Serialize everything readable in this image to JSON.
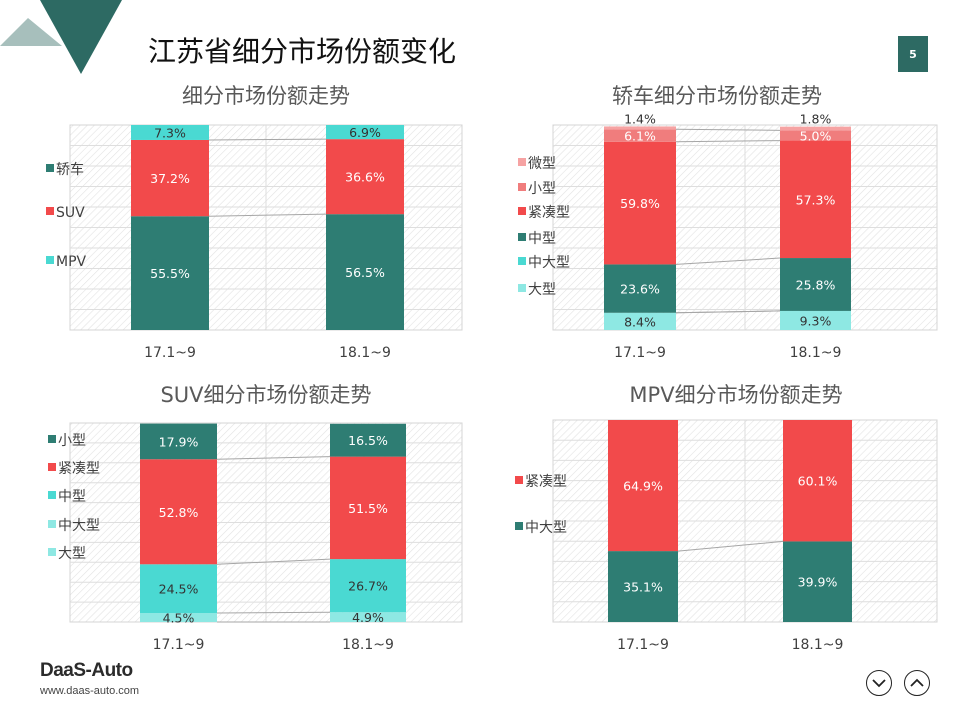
{
  "header": {
    "title": "江苏省细分市场份额变化",
    "page_number": "5"
  },
  "footer": {
    "logo_text": "DaaS-Auto",
    "url": "www.daas-auto.com"
  },
  "nav": {
    "down_icon": "chevron-down-circle-icon",
    "up_icon": "chevron-up-circle-icon"
  },
  "colors": {
    "teal": "#2e7d73",
    "red": "#f24a4b",
    "cyan": "#4ad9d2",
    "light_cyan": "#8ee8e3",
    "pink": "#f07d7d",
    "light_pink": "#f6a3a3",
    "accent": "#2d6a63"
  },
  "chart_data": [
    {
      "type": "bar",
      "stacked": true,
      "normalized": true,
      "title": "细分市场份额走势",
      "categories": [
        "17.1~9",
        "18.1~9"
      ],
      "series": [
        {
          "name": "轿车",
          "values": [
            55.5,
            56.5
          ],
          "color": "#2e7d73"
        },
        {
          "name": "SUV",
          "values": [
            37.2,
            36.6
          ],
          "color": "#f24a4b"
        },
        {
          "name": "MPV",
          "values": [
            7.3,
            6.9
          ],
          "color": "#4ad9d2"
        }
      ],
      "labels": [
        [
          "55.5%",
          "56.5%"
        ],
        [
          "37.2%",
          "36.6%"
        ],
        [
          "7.3%",
          "6.9%"
        ]
      ],
      "ylim": [
        0,
        100
      ],
      "legend": "left"
    },
    {
      "type": "bar",
      "stacked": true,
      "normalized": true,
      "title": "轿车细分市场份额走势",
      "categories": [
        "17.1~9",
        "18.1~9"
      ],
      "series": [
        {
          "name": "大型",
          "values": [
            8.4,
            9.3
          ],
          "color": "#8ee8e3"
        },
        {
          "name": "中大型",
          "values": [
            0,
            0
          ],
          "color": "#4ad9d2"
        },
        {
          "name": "中型",
          "values": [
            23.6,
            25.8
          ],
          "color": "#2e7d73"
        },
        {
          "name": "紧凑型",
          "values": [
            59.8,
            57.3
          ],
          "color": "#f24a4b"
        },
        {
          "name": "小型",
          "values": [
            6.1,
            5.0
          ],
          "color": "#f07d7d"
        },
        {
          "name": "微型",
          "values": [
            1.4,
            1.8
          ],
          "color": "#f6a3a3"
        }
      ],
      "labels": [
        [
          "8.4%",
          "9.3%"
        ],
        [
          "",
          ""
        ],
        [
          "23.6%",
          "25.8%"
        ],
        [
          "59.8%",
          "57.3%"
        ],
        [
          "6.1%",
          "5.0%"
        ],
        [
          "1.4%",
          "1.8%"
        ]
      ],
      "ylim": [
        0,
        100
      ],
      "legend": "left"
    },
    {
      "type": "bar",
      "stacked": true,
      "normalized": true,
      "title": "SUV细分市场份额走势",
      "categories": [
        "17.1~9",
        "18.1~9"
      ],
      "series": [
        {
          "name": "大型",
          "values": [
            0,
            0
          ],
          "color": "#8ee8e3"
        },
        {
          "name": "中大型",
          "values": [
            4.5,
            4.9
          ],
          "color": "#8ee8e3"
        },
        {
          "name": "中型",
          "values": [
            24.5,
            26.7
          ],
          "color": "#4ad9d2"
        },
        {
          "name": "紧凑型",
          "values": [
            52.8,
            51.5
          ],
          "color": "#f24a4b"
        },
        {
          "name": "小型",
          "values": [
            17.9,
            16.5
          ],
          "color": "#2e7d73"
        }
      ],
      "labels": [
        [
          "",
          ""
        ],
        [
          "4.5%",
          "4.9%"
        ],
        [
          "24.5%",
          "26.7%"
        ],
        [
          "52.8%",
          "51.5%"
        ],
        [
          "17.9%",
          "16.5%"
        ]
      ],
      "ylim": [
        0,
        100
      ],
      "legend": "left"
    },
    {
      "type": "bar",
      "stacked": true,
      "normalized": true,
      "title": "MPV细分市场份额走势",
      "categories": [
        "17.1~9",
        "18.1~9"
      ],
      "series": [
        {
          "name": "中大型",
          "values": [
            35.1,
            39.9
          ],
          "color": "#2e7d73"
        },
        {
          "name": "紧凑型",
          "values": [
            64.9,
            60.1
          ],
          "color": "#f24a4b"
        }
      ],
      "labels": [
        [
          "35.1%",
          "39.9%"
        ],
        [
          "64.9%",
          "60.1%"
        ]
      ],
      "ylim": [
        0,
        100
      ],
      "legend": "left"
    }
  ]
}
